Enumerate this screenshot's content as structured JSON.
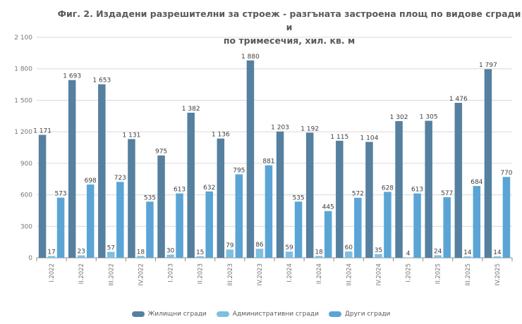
{
  "chart_data": {
    "type": "bar",
    "title_line1": "Фиг. 2. Издадени разрешителни за строеж - разгъната застроена площ по видове сгради и",
    "title_line2": "по тримесечия, хил. кв. м",
    "categories": [
      "I.2022",
      "II.2022",
      "III.2022",
      "IV.2022",
      "I.2023",
      "II.2023",
      "III.2023",
      "IV.2023",
      "I.2024",
      "II.2024",
      "III.2024",
      "IV.2024",
      "I.2025",
      "II.2025",
      "III.2025",
      "IV.2025"
    ],
    "series": [
      {
        "name": "Жилищни сгради",
        "color": "#56809f",
        "values": [
          1171,
          1693,
          1653,
          1131,
          975,
          1382,
          1136,
          1880,
          1203,
          1192,
          1115,
          1104,
          1302,
          1305,
          1476,
          1797
        ]
      },
      {
        "name": "Административни сгради",
        "color": "#7fbfe0",
        "values": [
          17,
          23,
          57,
          18,
          30,
          15,
          79,
          86,
          59,
          18,
          60,
          35,
          4,
          24,
          14,
          14
        ]
      },
      {
        "name": "Други сгради",
        "color": "#5aa5d6",
        "values": [
          573,
          698,
          723,
          535,
          613,
          632,
          795,
          881,
          535,
          445,
          572,
          628,
          613,
          577,
          684,
          770
        ]
      }
    ],
    "y_ticks": [
      0,
      300,
      600,
      900,
      1200,
      1500,
      1800,
      2100
    ],
    "y_tick_labels": [
      "0",
      "300",
      "600",
      "900",
      "1 200",
      "1 500",
      "1 800",
      "2 100"
    ],
    "ylim": [
      0,
      2100
    ],
    "grid": true,
    "legend_position": "bottom"
  }
}
